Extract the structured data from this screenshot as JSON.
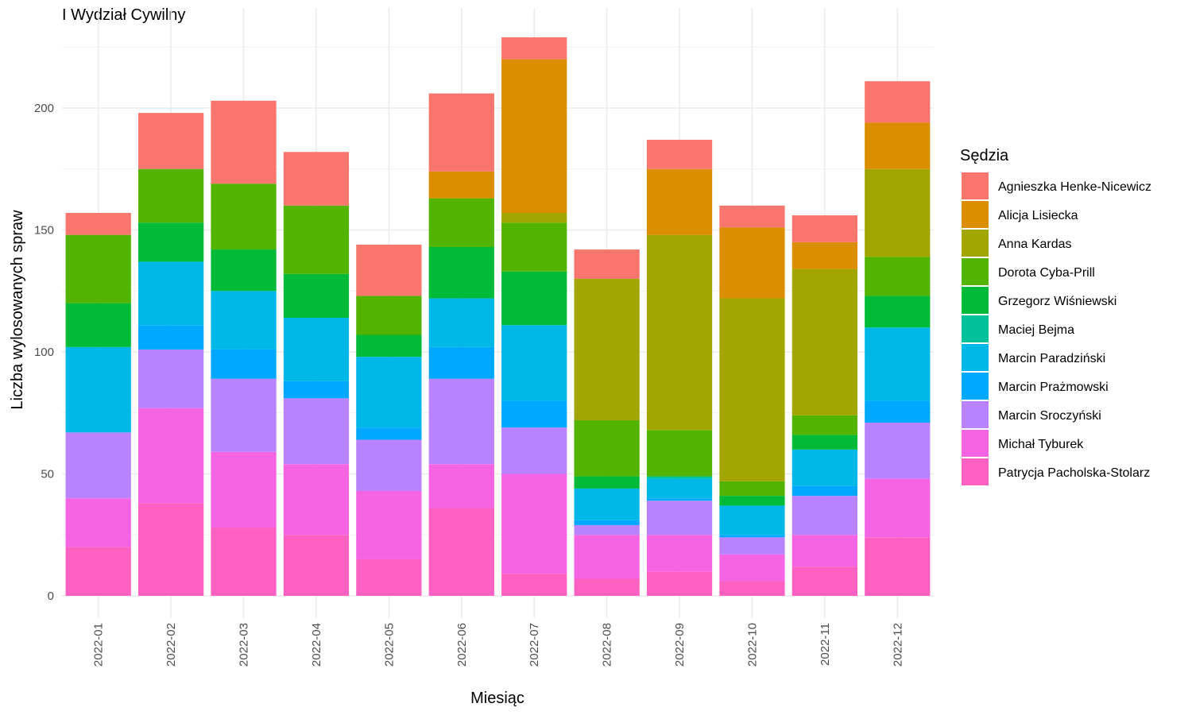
{
  "chart_data": {
    "type": "bar",
    "stacked": true,
    "title": "I Wydział Cywilny",
    "xlabel": "Miesiąc",
    "ylabel": "Liczba wylosowanych spraw",
    "ylim": [
      0,
      230
    ],
    "yticks": [
      0,
      50,
      100,
      150,
      200
    ],
    "grid": true,
    "legend": {
      "title": "Sędzia",
      "position": "right"
    },
    "categories": [
      "2022-01",
      "2022-02",
      "2022-03",
      "2022-04",
      "2022-05",
      "2022-06",
      "2022-07",
      "2022-08",
      "2022-09",
      "2022-10",
      "2022-11",
      "2022-12"
    ],
    "series": [
      {
        "name": "Patrycja Pacholska-Stolarz",
        "color": "#FF61C3",
        "values": [
          20,
          38,
          28,
          25,
          15,
          36,
          9,
          7,
          10,
          6,
          12,
          24
        ]
      },
      {
        "name": "Michał Tyburek",
        "color": "#F564E3",
        "values": [
          20,
          39,
          31,
          29,
          28,
          18,
          41,
          18,
          15,
          11,
          13,
          24
        ]
      },
      {
        "name": "Marcin Sroczyński",
        "color": "#B983FF",
        "values": [
          27,
          24,
          30,
          27,
          21,
          35,
          19,
          4,
          14,
          7,
          16,
          23
        ]
      },
      {
        "name": "Marcin Prażmowski",
        "color": "#00A9FF",
        "values": [
          0,
          10,
          12,
          7,
          5,
          13,
          11,
          2,
          1,
          1,
          4,
          9
        ]
      },
      {
        "name": "Marcin Paradziński",
        "color": "#00B8E7",
        "values": [
          35,
          26,
          24,
          26,
          29,
          20,
          31,
          13,
          8,
          12,
          15,
          30
        ]
      },
      {
        "name": "Maciej Bejma",
        "color": "#00C19A",
        "values": [
          0,
          0,
          0,
          0,
          0,
          0,
          0,
          0,
          1,
          0,
          0,
          0
        ]
      },
      {
        "name": "Grzegorz Wiśniewski",
        "color": "#00BA38",
        "values": [
          18,
          16,
          17,
          18,
          9,
          21,
          22,
          5,
          0,
          4,
          6,
          13
        ]
      },
      {
        "name": "Dorota Cyba-Prill",
        "color": "#53B400",
        "values": [
          28,
          22,
          27,
          28,
          16,
          20,
          20,
          23,
          19,
          6,
          8,
          16
        ]
      },
      {
        "name": "Anna Kardas",
        "color": "#A3A500",
        "values": [
          0,
          0,
          0,
          0,
          0,
          0,
          4,
          58,
          80,
          75,
          60,
          36
        ]
      },
      {
        "name": "Alicja Lisiecka",
        "color": "#DB8E00",
        "values": [
          0,
          0,
          0,
          0,
          0,
          11,
          63,
          0,
          27,
          29,
          11,
          19
        ]
      },
      {
        "name": "Agnieszka Henke-Nicewicz",
        "color": "#F8766D",
        "values": [
          9,
          23,
          34,
          22,
          21,
          32,
          9,
          12,
          12,
          9,
          11,
          17
        ]
      }
    ]
  }
}
